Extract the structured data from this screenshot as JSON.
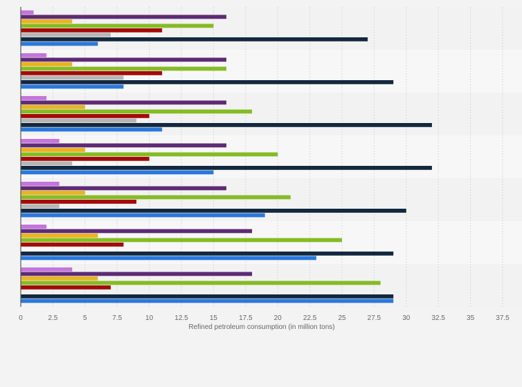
{
  "chart_data": {
    "type": "bar",
    "orientation": "horizontal",
    "title": "",
    "xlabel": "Refined petroleum consumption (in million tons)",
    "ylabel": "",
    "xlim": [
      0,
      37.5
    ],
    "xticks": [
      "0",
      "2.5",
      "5",
      "7.5",
      "10",
      "12.5",
      "15",
      "17.5",
      "20",
      "22.5",
      "25",
      "27.5",
      "30",
      "32.5",
      "35",
      "37.5"
    ],
    "grid": true,
    "legend": "none",
    "categories": [
      "",
      "",
      "",
      "",
      "",
      "",
      ""
    ],
    "series": [
      {
        "color": "#c474dc",
        "values": [
          1,
          2,
          2,
          3,
          3,
          2,
          4
        ]
      },
      {
        "color": "#5e2b74",
        "values": [
          16,
          16,
          16,
          16,
          16,
          18,
          18
        ]
      },
      {
        "color": "#eab321",
        "values": [
          4,
          4,
          5,
          5,
          5,
          6,
          6
        ]
      },
      {
        "color": "#86bb25",
        "values": [
          15,
          16,
          18,
          20,
          21,
          25,
          28
        ]
      },
      {
        "color": "#a40a0a",
        "values": [
          11,
          11,
          10,
          10,
          9,
          8,
          7
        ]
      },
      {
        "color": "#b6b6b6",
        "values": [
          7,
          8,
          9,
          4,
          3,
          null,
          null
        ]
      },
      {
        "color": "#13283f",
        "values": [
          27,
          29,
          32,
          32,
          30,
          29,
          29
        ]
      },
      {
        "color": "#2b78dc",
        "values": [
          6,
          8,
          11,
          15,
          19,
          23,
          29
        ]
      }
    ]
  }
}
